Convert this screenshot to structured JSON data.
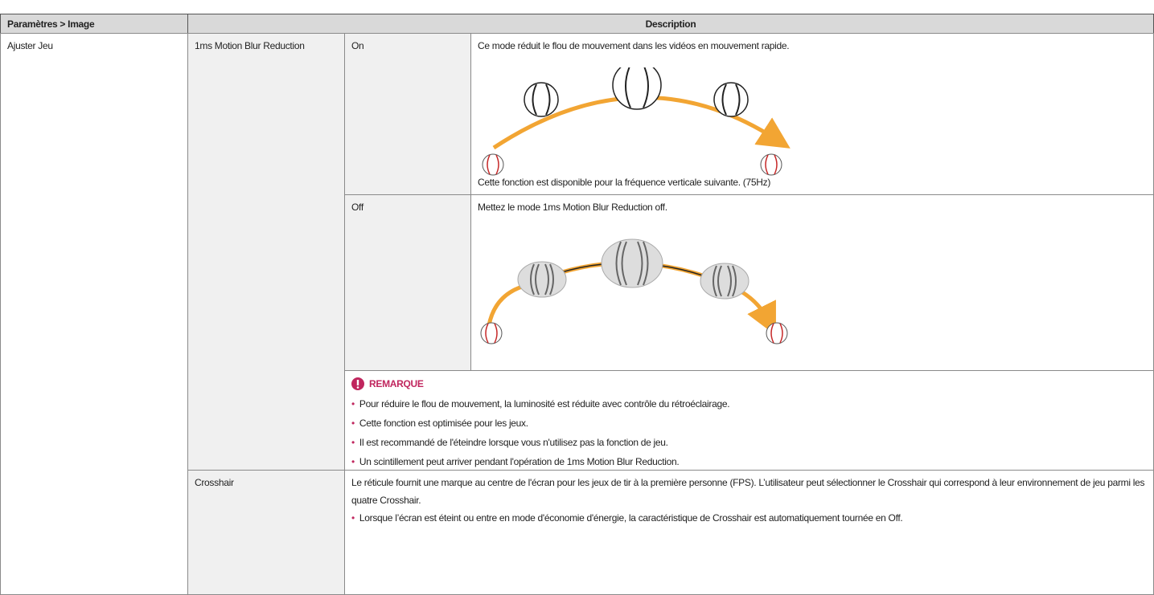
{
  "table": {
    "header": [
      "Paramètres > Image",
      "Description"
    ],
    "setting": "Ajuster Jeu",
    "features": [
      {
        "name": "1ms Motion Blur Reduction",
        "options": [
          {
            "label": "On",
            "text": "Ce mode réduit le flou de mouvement dans les vidéos en mouvement rapide.",
            "footer": "Cette fonction est disponible pour la fréquence verticale suivante. (75Hz)"
          },
          {
            "label": "Off",
            "text": "Mettez le mode 1ms Motion Blur Reduction off."
          }
        ],
        "note": {
          "title": "REMARQUE",
          "items": [
            "Pour réduire le flou de mouvement, la luminosité est réduite avec contrôle du rétroéclairage.",
            "Cette fonction est optimisée pour les jeux.",
            "Il est recommandé de l'éteindre lorsque vous n'utilisez pas la fonction de jeu.",
            "Un scintillement peut arriver pendant l'opération de 1ms Motion Blur Reduction."
          ]
        }
      },
      {
        "name": "Crosshair",
        "text": "Le réticule fournit une marque au centre de l'écran pour les jeux de tir à la première personne (FPS). L’utilisateur peut sélectionner le Crosshair qui correspond à leur environnement de jeu parmi les quatre Crosshair.",
        "items": [
          "Lorsque l’écran est éteint ou entre en mode d'économie d'énergie, la caractéristique de Crosshair est automatiquement tournée en Off."
        ]
      }
    ]
  }
}
